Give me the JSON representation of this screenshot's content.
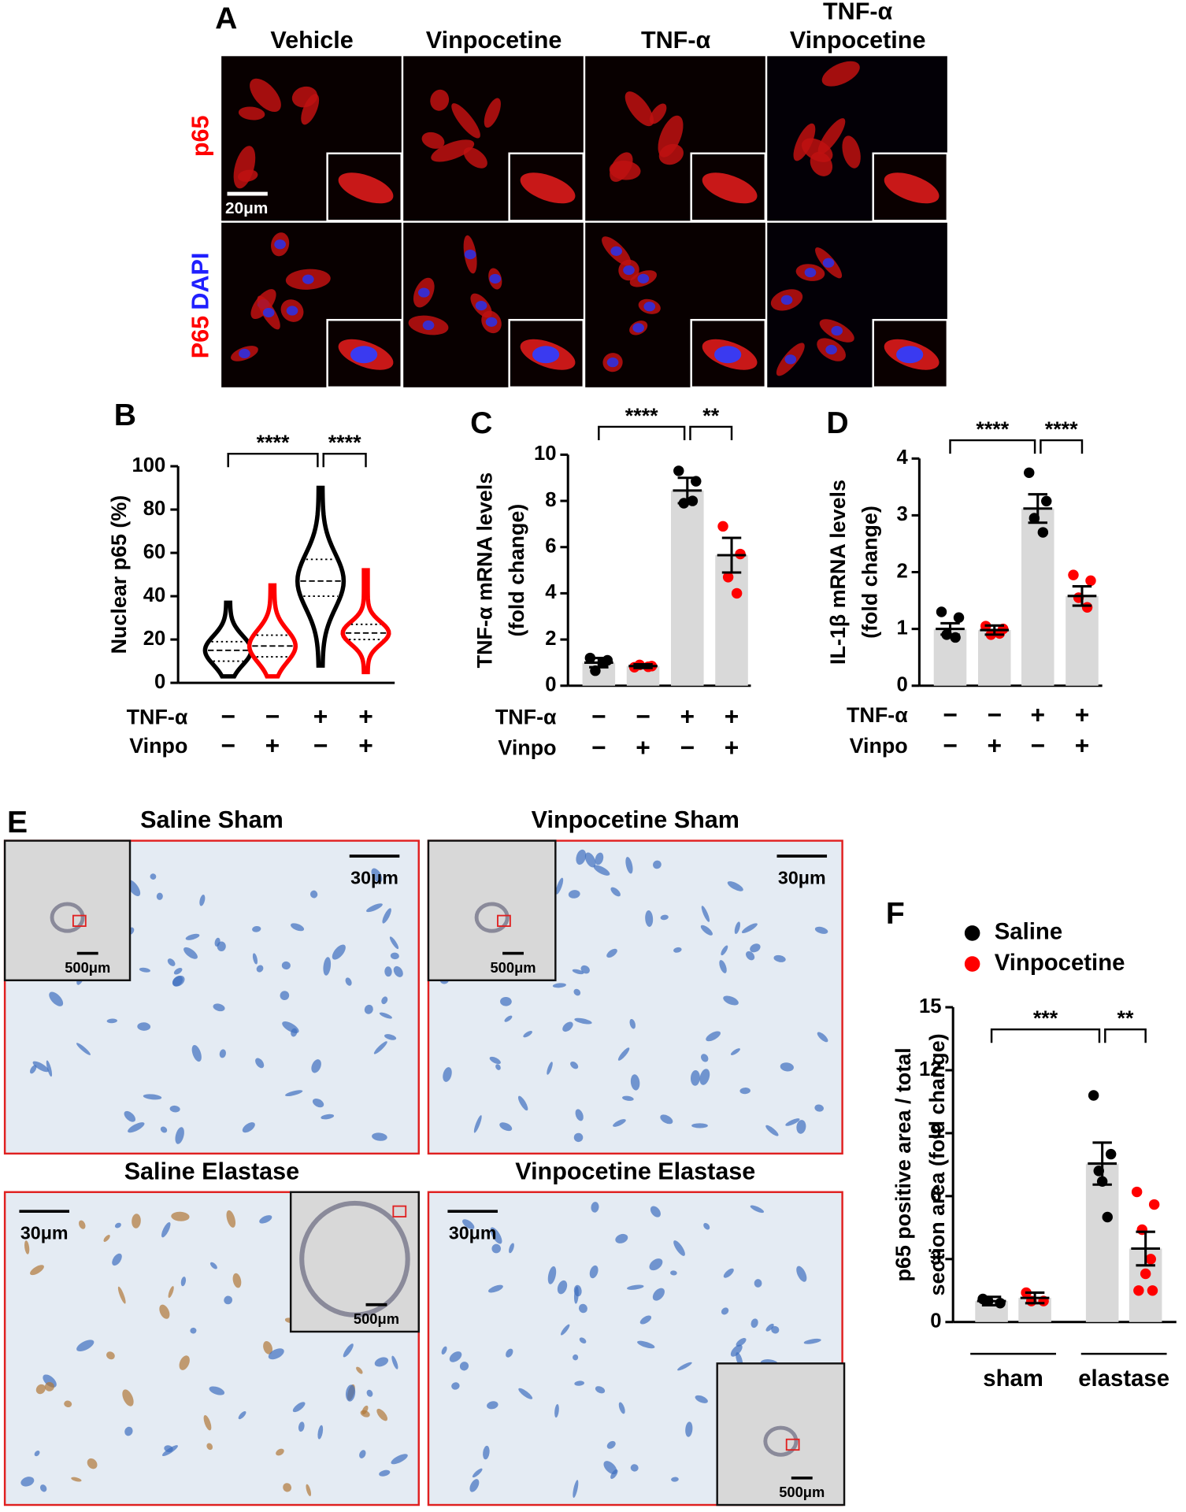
{
  "panel_labels": [
    "A",
    "B",
    "C",
    "D",
    "E",
    "F"
  ],
  "panel_a": {
    "columns": [
      [
        "Vehicle"
      ],
      [
        "Vinpocetine"
      ],
      [
        "TNF-α"
      ],
      [
        "TNF-α",
        "Vinpocetine"
      ]
    ],
    "rows": [
      [
        "p65"
      ],
      [
        "P65",
        "DAPI"
      ]
    ],
    "scale_bar": "20μm"
  },
  "chart_data": [
    {
      "type": "violin",
      "ylabel": "Nuclear p65 (%)",
      "ylim": [
        0,
        100
      ],
      "yticks": [
        0,
        20,
        40,
        60,
        80,
        100
      ],
      "conditions": [
        {
          "name": "TNF-α",
          "signs": [
            "−",
            "−",
            "+",
            "+"
          ]
        },
        {
          "name": "Vinpo",
          "signs": [
            "−",
            "+",
            "−",
            "+"
          ]
        }
      ],
      "colors": [
        "#000000",
        "#ff0000",
        "#000000",
        "#ff0000"
      ],
      "min": [
        3,
        3,
        8,
        5
      ],
      "q1": [
        10,
        12,
        40,
        20
      ],
      "medians": [
        15,
        17,
        47,
        23
      ],
      "q3": [
        19,
        22,
        57,
        27
      ],
      "max": [
        37,
        45,
        90,
        52
      ],
      "significance": [
        "****",
        "****"
      ]
    },
    {
      "type": "bar",
      "ylabel": [
        "TNF-α mRNA levels",
        "(fold change)"
      ],
      "ylim": [
        0,
        10
      ],
      "yticks": [
        0,
        2,
        4,
        6,
        8,
        10
      ],
      "conditions": [
        {
          "name": "TNF-α",
          "signs": [
            "−",
            "−",
            "+",
            "+"
          ]
        },
        {
          "name": "Vinpo",
          "signs": [
            "−",
            "+",
            "−",
            "+"
          ]
        }
      ],
      "bar_color": "#d9d9d9",
      "point_colors": [
        "#000000",
        "#ff0000",
        "#000000",
        "#ff0000"
      ],
      "values": [
        1.0,
        0.85,
        8.45,
        5.65
      ],
      "sem": [
        0.2,
        0.08,
        0.55,
        0.75
      ],
      "points": [
        [
          1.2,
          1.1,
          0.65,
          1.0
        ],
        [
          0.8,
          0.85,
          0.9,
          0.82
        ],
        [
          9.3,
          8.85,
          7.9,
          8.0
        ],
        [
          6.9,
          5.7,
          4.7,
          4.0
        ]
      ],
      "significance": [
        "****",
        "**"
      ]
    },
    {
      "type": "bar",
      "ylabel": [
        "IL-1β mRNA levels",
        "(fold change)"
      ],
      "ylim": [
        0,
        4
      ],
      "yticks": [
        0,
        1,
        2,
        3,
        4
      ],
      "conditions": [
        {
          "name": "TNF-α",
          "signs": [
            "−",
            "−",
            "+",
            "+"
          ]
        },
        {
          "name": "Vinpo",
          "signs": [
            "−",
            "+",
            "−",
            "+"
          ]
        }
      ],
      "bar_color": "#d9d9d9",
      "point_colors": [
        "#000000",
        "#ff0000",
        "#000000",
        "#ff0000"
      ],
      "values": [
        1.0,
        0.98,
        3.12,
        1.58
      ],
      "sem": [
        0.1,
        0.08,
        0.25,
        0.17
      ],
      "points": [
        [
          1.3,
          1.2,
          0.9,
          0.85
        ],
        [
          1.05,
          1.0,
          0.9,
          0.92
        ],
        [
          3.75,
          3.25,
          2.95,
          2.7
        ],
        [
          1.95,
          1.85,
          1.55,
          1.38
        ]
      ],
      "significance": [
        "****",
        "****"
      ]
    },
    {
      "type": "grouped_bar",
      "ylabel": [
        "p65 positive area / total",
        "section area (fold change)"
      ],
      "ylim": [
        0,
        15
      ],
      "yticks": [
        0,
        3,
        6,
        9,
        12,
        15
      ],
      "categories": [
        "sham",
        "elastase"
      ],
      "bar_color": "#d9d9d9",
      "series": [
        {
          "name": "Saline",
          "color": "#000000",
          "values": [
            1.0,
            7.55
          ],
          "sem": [
            0.2,
            1.0
          ],
          "points": [
            [
              1.1,
              0.9,
              1.0
            ],
            [
              10.8,
              8.0,
              7.2,
              5.0,
              6.7
            ]
          ]
        },
        {
          "name": "Vinpocetine",
          "color": "#ff0000",
          "values": [
            1.15,
            3.5
          ],
          "sem": [
            0.25,
            0.8
          ],
          "points": [
            [
              1.4,
              1.0,
              1.0
            ],
            [
              6.2,
              5.6,
              4.4,
              3.0,
              2.3,
              1.5,
              1.5
            ]
          ]
        }
      ],
      "significance": [
        "***",
        "**"
      ]
    }
  ],
  "panel_e": {
    "images": [
      {
        "title": "Saline Sham",
        "scale_bar": "30μm",
        "inset_scale_bar": "500μm"
      },
      {
        "title": "Vinpocetine Sham",
        "scale_bar": "30μm",
        "inset_scale_bar": "500μm"
      },
      {
        "title": "Saline Elastase",
        "scale_bar": "30μm",
        "inset_scale_bar": "500μm"
      },
      {
        "title": "Vinpocetine Elastase",
        "scale_bar": "30μm",
        "inset_scale_bar": "500μm"
      }
    ]
  }
}
